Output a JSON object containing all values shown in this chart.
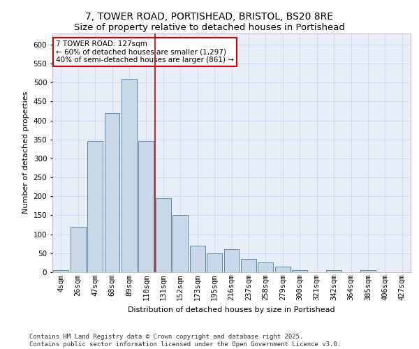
{
  "title_line1": "7, TOWER ROAD, PORTISHEAD, BRISTOL, BS20 8RE",
  "title_line2": "Size of property relative to detached houses in Portishead",
  "xlabel": "Distribution of detached houses by size in Portishead",
  "ylabel": "Number of detached properties",
  "categories": [
    "4sqm",
    "26sqm",
    "47sqm",
    "68sqm",
    "89sqm",
    "110sqm",
    "131sqm",
    "152sqm",
    "173sqm",
    "195sqm",
    "216sqm",
    "237sqm",
    "258sqm",
    "279sqm",
    "300sqm",
    "321sqm",
    "342sqm",
    "364sqm",
    "385sqm",
    "406sqm",
    "427sqm"
  ],
  "values": [
    5,
    120,
    345,
    420,
    510,
    345,
    195,
    150,
    70,
    50,
    60,
    35,
    25,
    15,
    5,
    0,
    5,
    0,
    5,
    0,
    0
  ],
  "bar_color": "#c8d8e8",
  "bar_edge_color": "#5b8ab0",
  "vline_color": "#cc0000",
  "vline_x": 5.5,
  "annotation_text": "7 TOWER ROAD: 127sqm\n← 60% of detached houses are smaller (1,297)\n40% of semi-detached houses are larger (861) →",
  "annotation_box_color": "#ffffff",
  "annotation_box_edge_color": "#cc0000",
  "ylim": [
    0,
    630
  ],
  "yticks": [
    0,
    50,
    100,
    150,
    200,
    250,
    300,
    350,
    400,
    450,
    500,
    550,
    600
  ],
  "grid_color": "#d0d8e8",
  "bg_color": "#e8eef8",
  "footer_text": "Contains HM Land Registry data © Crown copyright and database right 2025.\nContains public sector information licensed under the Open Government Licence v3.0.",
  "title_fontsize": 10,
  "axis_label_fontsize": 8,
  "tick_fontsize": 7.5,
  "footer_fontsize": 6.5
}
